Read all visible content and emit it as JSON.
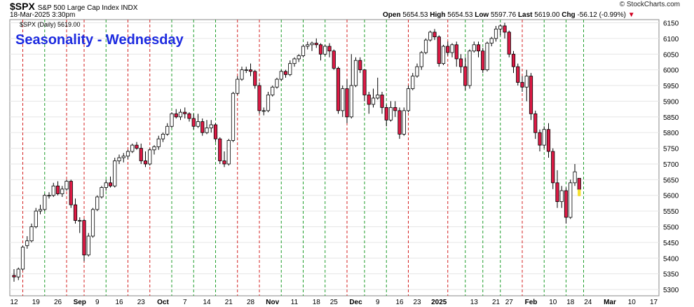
{
  "header": {
    "symbol": "$SPX",
    "description": "S&P 500 Large Cap Index  INDX",
    "date": "18-Mar-2025 3:30pm",
    "open_label": "Open",
    "open": "5654.53",
    "high_label": "High",
    "high": "5654.53",
    "low_label": "Low",
    "low": "5597.76",
    "last_label": "Last",
    "last": "5619.00",
    "chg_label": "Chg",
    "chg": "-56.12 (-0.99%)",
    "credit": "© StockCharts.com"
  },
  "legend": "$SPX (Daily) 5619.00",
  "colors": {
    "up": "#ffffff",
    "down": "#dd1a45",
    "today": "#f5e030",
    "green_line": "#1f9e2a",
    "red_line": "#d42020",
    "title": "#1d2be0"
  },
  "chart_data": {
    "type": "candlestick",
    "title": "Seasonality - Wednesday",
    "ylim": [
      5280,
      6160
    ],
    "y_ticks": [
      5300,
      5350,
      5400,
      5450,
      5500,
      5550,
      5600,
      5650,
      5700,
      5750,
      5800,
      5850,
      5900,
      5950,
      6000,
      6050,
      6100,
      6150
    ],
    "x_tick_labels": [
      "12",
      "19",
      "26",
      "Sep",
      "9",
      "16",
      "23",
      "Oct",
      "7",
      "14",
      "21",
      "28",
      "Nov",
      "11",
      "18",
      "25",
      "Dec",
      "9",
      "16",
      "23",
      "2025",
      "13",
      "21",
      "27",
      "Feb",
      "10",
      "18",
      "24",
      "Mar",
      "10",
      "17"
    ],
    "start_date": "2024-08-12",
    "x_tick_trading_index": [
      0,
      5,
      10,
      15,
      19,
      24,
      29,
      34,
      39,
      44,
      49,
      54,
      59,
      64,
      69,
      73,
      78,
      83,
      88,
      92,
      97,
      105,
      110,
      113,
      118,
      123,
      127,
      131,
      136,
      141,
      146
    ],
    "vertical_lines_wednesday": [
      {
        "date": "2024-08-14",
        "color": "red"
      },
      {
        "date": "2024-08-21",
        "color": "green"
      },
      {
        "date": "2024-08-28",
        "color": "red"
      },
      {
        "date": "2024-09-04",
        "color": "red"
      },
      {
        "date": "2024-09-11",
        "color": "green"
      },
      {
        "date": "2024-09-18",
        "color": "red"
      },
      {
        "date": "2024-09-25",
        "color": "red"
      },
      {
        "date": "2024-10-02",
        "color": "green"
      },
      {
        "date": "2024-10-09",
        "color": "green"
      },
      {
        "date": "2024-10-16",
        "color": "green"
      },
      {
        "date": "2024-10-23",
        "color": "red"
      },
      {
        "date": "2024-10-30",
        "color": "red"
      },
      {
        "date": "2024-11-06",
        "color": "green"
      },
      {
        "date": "2024-11-13",
        "color": "green"
      },
      {
        "date": "2024-11-20",
        "color": "green"
      },
      {
        "date": "2024-11-27",
        "color": "red"
      },
      {
        "date": "2024-12-04",
        "color": "green"
      },
      {
        "date": "2024-12-11",
        "color": "green"
      },
      {
        "date": "2024-12-18",
        "color": "red"
      },
      {
        "date": "2025-01-02",
        "color": "red"
      },
      {
        "date": "2025-01-08",
        "color": "green"
      },
      {
        "date": "2025-01-15",
        "color": "green"
      },
      {
        "date": "2025-01-22",
        "color": "green"
      },
      {
        "date": "2025-01-29",
        "color": "red"
      },
      {
        "date": "2025-02-05",
        "color": "green"
      },
      {
        "date": "2025-02-12",
        "color": "green"
      },
      {
        "date": "2025-02-19",
        "color": "green"
      },
      {
        "date": "2025-02-26",
        "color": "red"
      },
      {
        "date": "2025-03-05",
        "color": "green"
      },
      {
        "date": "2025-03-12",
        "color": "green"
      }
    ],
    "ohlc": [
      [
        5345,
        5365,
        5325,
        5340
      ],
      [
        5340,
        5370,
        5330,
        5365
      ],
      [
        5365,
        5440,
        5360,
        5435
      ],
      [
        5440,
        5470,
        5430,
        5455
      ],
      [
        5455,
        5510,
        5450,
        5500
      ],
      [
        5500,
        5560,
        5495,
        5550
      ],
      [
        5550,
        5570,
        5540,
        5555
      ],
      [
        5555,
        5605,
        5550,
        5600
      ],
      [
        5600,
        5610,
        5590,
        5600
      ],
      [
        5600,
        5640,
        5595,
        5630
      ],
      [
        5630,
        5645,
        5600,
        5605
      ],
      [
        5605,
        5630,
        5595,
        5620
      ],
      [
        5620,
        5650,
        5615,
        5645
      ],
      [
        5645,
        5650,
        5560,
        5570
      ],
      [
        5570,
        5590,
        5510,
        5520
      ],
      [
        5520,
        5530,
        5480,
        5520
      ],
      [
        5520,
        5525,
        5390,
        5410
      ],
      [
        5410,
        5480,
        5405,
        5470
      ],
      [
        5470,
        5560,
        5465,
        5555
      ],
      [
        5555,
        5600,
        5550,
        5595
      ],
      [
        5595,
        5630,
        5590,
        5625
      ],
      [
        5625,
        5650,
        5615,
        5640
      ],
      [
        5640,
        5660,
        5625,
        5630
      ],
      [
        5630,
        5720,
        5625,
        5710
      ],
      [
        5710,
        5730,
        5700,
        5720
      ],
      [
        5720,
        5735,
        5705,
        5725
      ],
      [
        5725,
        5745,
        5715,
        5740
      ],
      [
        5740,
        5765,
        5735,
        5760
      ],
      [
        5760,
        5770,
        5745,
        5750
      ],
      [
        5750,
        5765,
        5700,
        5710
      ],
      [
        5710,
        5740,
        5690,
        5700
      ],
      [
        5700,
        5750,
        5695,
        5745
      ],
      [
        5745,
        5760,
        5730,
        5755
      ],
      [
        5755,
        5790,
        5745,
        5780
      ],
      [
        5780,
        5800,
        5770,
        5795
      ],
      [
        5795,
        5830,
        5790,
        5820
      ],
      [
        5820,
        5865,
        5815,
        5860
      ],
      [
        5860,
        5875,
        5845,
        5850
      ],
      [
        5850,
        5875,
        5840,
        5865
      ],
      [
        5865,
        5880,
        5845,
        5860
      ],
      [
        5860,
        5865,
        5835,
        5845
      ],
      [
        5845,
        5860,
        5810,
        5820
      ],
      [
        5820,
        5860,
        5815,
        5835
      ],
      [
        5835,
        5845,
        5790,
        5800
      ],
      [
        5800,
        5840,
        5795,
        5815
      ],
      [
        5815,
        5840,
        5800,
        5825
      ],
      [
        5825,
        5830,
        5770,
        5780
      ],
      [
        5780,
        5785,
        5700,
        5710
      ],
      [
        5710,
        5740,
        5690,
        5700
      ],
      [
        5700,
        5780,
        5695,
        5775
      ],
      [
        5775,
        5930,
        5770,
        5925
      ],
      [
        5925,
        5980,
        5920,
        5970
      ],
      [
        5970,
        6010,
        5965,
        6000
      ],
      [
        6000,
        6010,
        5990,
        6000
      ],
      [
        6000,
        6020,
        5980,
        5995
      ],
      [
        5995,
        6000,
        5940,
        5950
      ],
      [
        5950,
        5960,
        5860,
        5870
      ],
      [
        5870,
        5880,
        5855,
        5870
      ],
      [
        5870,
        5930,
        5865,
        5920
      ],
      [
        5920,
        5950,
        5915,
        5945
      ],
      [
        5945,
        5975,
        5940,
        5970
      ],
      [
        5970,
        6000,
        5965,
        5995
      ],
      [
        5995,
        6000,
        5975,
        5985
      ],
      [
        5985,
        6030,
        5980,
        6020
      ],
      [
        6020,
        6040,
        6010,
        6035
      ],
      [
        6035,
        6050,
        6025,
        6045
      ],
      [
        6045,
        6080,
        6040,
        6075
      ],
      [
        6075,
        6090,
        6065,
        6080
      ],
      [
        6080,
        6090,
        6060,
        6085
      ],
      [
        6085,
        6100,
        6070,
        6080
      ],
      [
        6080,
        6085,
        6030,
        6050
      ],
      [
        6050,
        6080,
        6045,
        6075
      ],
      [
        6075,
        6085,
        6040,
        6060
      ],
      [
        6060,
        6065,
        6000,
        6005
      ],
      [
        6005,
        6010,
        5860,
        5870
      ],
      [
        5870,
        5950,
        5850,
        5940
      ],
      [
        5940,
        5970,
        5830,
        5850
      ],
      [
        5850,
        6050,
        5845,
        5950
      ],
      [
        5950,
        6040,
        5945,
        6030
      ],
      [
        6030,
        6040,
        5990,
        6000
      ],
      [
        6000,
        6000,
        5900,
        5920
      ],
      [
        5920,
        5930,
        5860,
        5890
      ],
      [
        5890,
        5940,
        5880,
        5910
      ],
      [
        5910,
        5975,
        5905,
        5920
      ],
      [
        5920,
        5930,
        5860,
        5880
      ],
      [
        5880,
        5890,
        5820,
        5840
      ],
      [
        5840,
        5900,
        5835,
        5880
      ],
      [
        5880,
        5900,
        5850,
        5870
      ],
      [
        5870,
        5880,
        5780,
        5795
      ],
      [
        5795,
        5880,
        5790,
        5870
      ],
      [
        5870,
        5950,
        5865,
        5940
      ],
      [
        5940,
        5990,
        5935,
        5980
      ],
      [
        5980,
        6020,
        5975,
        6010
      ],
      [
        6010,
        6060,
        6000,
        6055
      ],
      [
        6055,
        6100,
        6050,
        6095
      ],
      [
        6095,
        6125,
        6090,
        6120
      ],
      [
        6120,
        6130,
        6095,
        6105
      ],
      [
        6105,
        6110,
        6010,
        6020
      ],
      [
        6020,
        6080,
        6015,
        6075
      ],
      [
        6075,
        6090,
        6045,
        6055
      ],
      [
        6055,
        6085,
        6040,
        6080
      ],
      [
        6080,
        6090,
        6010,
        6035
      ],
      [
        6035,
        6050,
        5990,
        6010
      ],
      [
        6010,
        6040,
        5935,
        5950
      ],
      [
        5950,
        6065,
        5940,
        6060
      ],
      [
        6060,
        6090,
        6055,
        6080
      ],
      [
        6080,
        6090,
        6040,
        6060
      ],
      [
        6060,
        6070,
        5990,
        6000
      ],
      [
        6000,
        6090,
        5995,
        6085
      ],
      [
        6085,
        6105,
        6075,
        6100
      ],
      [
        6100,
        6140,
        6090,
        6130
      ],
      [
        6130,
        6145,
        6110,
        6140
      ],
      [
        6140,
        6150,
        6100,
        6120
      ],
      [
        6120,
        6125,
        6040,
        6050
      ],
      [
        6050,
        6060,
        5990,
        6010
      ],
      [
        6010,
        6020,
        5950,
        5960
      ],
      [
        5960,
        5980,
        5930,
        5945
      ],
      [
        5945,
        6000,
        5900,
        5980
      ],
      [
        5980,
        5990,
        5840,
        5860
      ],
      [
        5860,
        5870,
        5780,
        5800
      ],
      [
        5800,
        5810,
        5740,
        5760
      ],
      [
        5760,
        5820,
        5750,
        5810
      ],
      [
        5810,
        5830,
        5720,
        5740
      ],
      [
        5740,
        5750,
        5620,
        5640
      ],
      [
        5640,
        5680,
        5560,
        5580
      ],
      [
        5580,
        5630,
        5560,
        5615
      ],
      [
        5615,
        5625,
        5510,
        5530
      ],
      [
        5530,
        5650,
        5525,
        5640
      ],
      [
        5640,
        5700,
        5630,
        5675
      ],
      [
        5654.53,
        5654.53,
        5597.76,
        5619
      ]
    ]
  }
}
